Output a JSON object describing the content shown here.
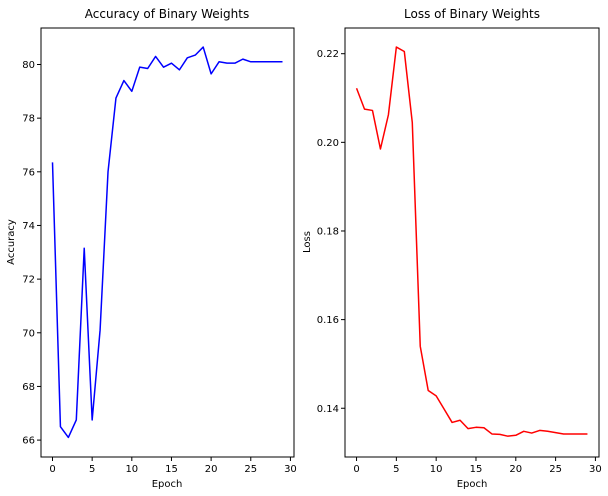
{
  "chart_data": [
    {
      "type": "line",
      "title": "Accuracy of Binary Weights",
      "xlabel": "Epoch",
      "ylabel": "Accuracy",
      "xlim": [
        -1.45,
        30.45
      ],
      "ylim": [
        65.37,
        81.36
      ],
      "xticks": [
        0,
        5,
        10,
        15,
        20,
        25,
        30
      ],
      "yticks": [
        66,
        68,
        70,
        72,
        74,
        76,
        78,
        80
      ],
      "grid": false,
      "series": [
        {
          "color": "#0000ff",
          "x": [
            0,
            1,
            2,
            3,
            4,
            5,
            6,
            7,
            8,
            9,
            10,
            11,
            12,
            13,
            14,
            15,
            16,
            17,
            18,
            19,
            20,
            21,
            22,
            23,
            24,
            25,
            26,
            27,
            28,
            29
          ],
          "y": [
            76.35,
            66.5,
            66.1,
            66.75,
            73.15,
            66.75,
            70.1,
            76.0,
            78.75,
            79.4,
            79.0,
            79.9,
            79.85,
            80.3,
            79.9,
            80.05,
            79.8,
            80.25,
            80.35,
            80.65,
            79.65,
            80.1,
            80.05,
            80.05,
            80.2,
            80.1,
            80.1,
            80.1,
            80.1,
            80.1
          ]
        }
      ]
    },
    {
      "type": "line",
      "title": "Loss of Binary Weights",
      "xlabel": "Epoch",
      "ylabel": "Loss",
      "xlim": [
        -1.45,
        30.45
      ],
      "ylim": [
        0.129,
        0.2258
      ],
      "xticks": [
        0,
        5,
        10,
        15,
        20,
        25,
        30
      ],
      "yticks": [
        0.14,
        0.16,
        0.18,
        0.2,
        0.22
      ],
      "grid": false,
      "series": [
        {
          "color": "#ff0000",
          "x": [
            0,
            1,
            2,
            3,
            4,
            5,
            6,
            7,
            8,
            9,
            10,
            11,
            12,
            13,
            14,
            15,
            16,
            17,
            18,
            19,
            20,
            21,
            22,
            23,
            24,
            25,
            26,
            27,
            28,
            29
          ],
          "y": [
            0.2122,
            0.2075,
            0.2072,
            0.1985,
            0.2062,
            0.2215,
            0.2205,
            0.2045,
            0.154,
            0.144,
            0.1428,
            0.1398,
            0.1368,
            0.1373,
            0.1354,
            0.1357,
            0.1356,
            0.1342,
            0.1341,
            0.1337,
            0.1339,
            0.1348,
            0.1344,
            0.135,
            0.1348,
            0.1345,
            0.1342,
            0.1342,
            0.1342,
            0.1342
          ]
        }
      ]
    }
  ]
}
